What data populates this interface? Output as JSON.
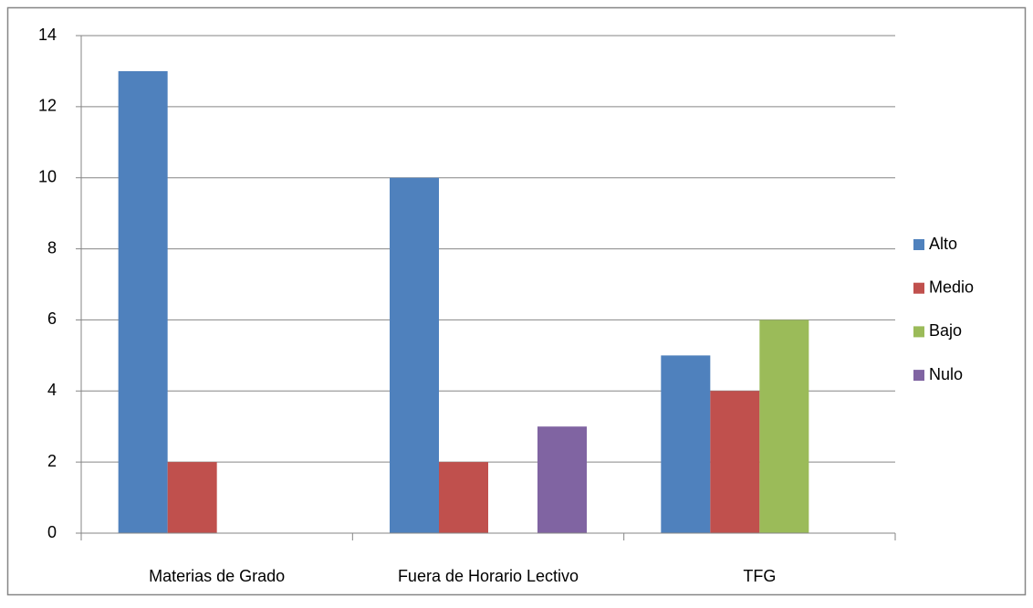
{
  "chart_data": {
    "type": "bar",
    "categories": [
      "Materias de Grado",
      "Fuera de Horario Lectivo",
      "TFG"
    ],
    "series": [
      {
        "name": "Alto",
        "color": "#4f81bd",
        "values": [
          13,
          10,
          5
        ]
      },
      {
        "name": "Medio",
        "color": "#c0504d",
        "values": [
          2,
          2,
          4
        ]
      },
      {
        "name": "Bajo",
        "color": "#9bbb59",
        "values": [
          0,
          0,
          6
        ]
      },
      {
        "name": "Nulo",
        "color": "#8064a2",
        "values": [
          0,
          3,
          0
        ]
      }
    ],
    "ylim": [
      0,
      14
    ],
    "yticks": [
      0,
      2,
      4,
      6,
      8,
      10,
      12,
      14
    ],
    "grid": true,
    "legend": "right"
  }
}
